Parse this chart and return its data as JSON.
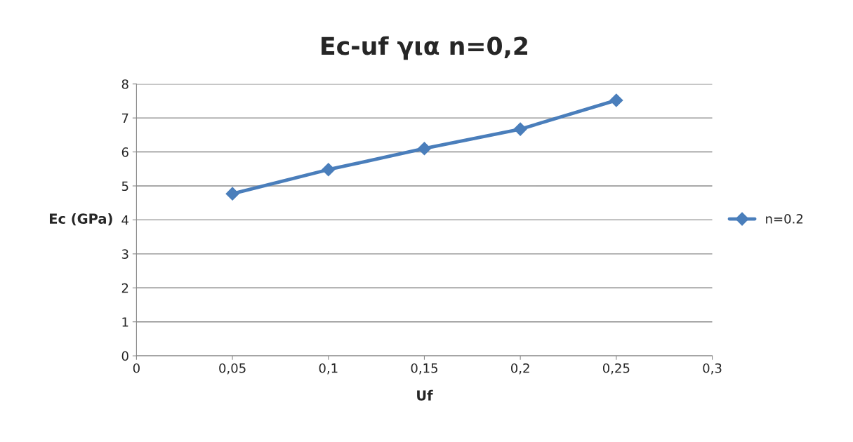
{
  "chart_data": {
    "type": "line",
    "title": "Ec-uf για n=0,2",
    "xlabel": "Uf",
    "ylabel": "Ec (GPa)",
    "x": [
      0.05,
      0.1,
      0.15,
      0.2,
      0.25
    ],
    "series": [
      {
        "name": "n=0.2",
        "color": "#4a7ebb",
        "values": [
          4.77,
          5.48,
          6.1,
          6.67,
          7.52
        ]
      }
    ],
    "xlim": [
      0,
      0.3
    ],
    "xticks": [
      0,
      {
        "value": 0.05,
        "label": "0,05"
      },
      {
        "value": 0.1,
        "label": "0,1"
      },
      {
        "value": 0.15,
        "label": "0,15"
      },
      {
        "value": 0.2,
        "label": "0,2"
      },
      {
        "value": 0.25,
        "label": "0,25"
      },
      {
        "value": 0.3,
        "label": "0,3"
      }
    ],
    "ylim": [
      0,
      8
    ],
    "yticks": [
      0,
      1,
      2,
      3,
      4,
      5,
      6,
      7,
      8
    ],
    "grid": "y",
    "legend": "right",
    "marker": "diamond",
    "line_style": "solid"
  }
}
